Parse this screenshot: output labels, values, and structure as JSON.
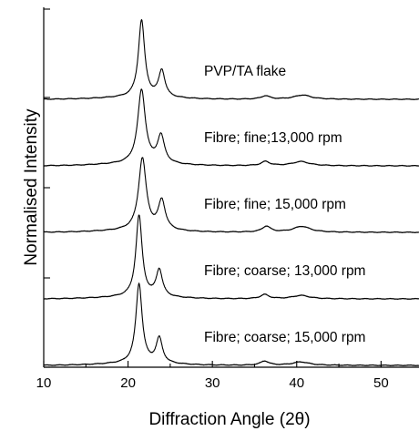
{
  "chart_data": {
    "type": "line",
    "xlabel": "Diffraction Angle (2θ)",
    "ylabel": "Normalised Intensity",
    "xlim": [
      10,
      54.5
    ],
    "x_ticks": [
      10,
      20,
      30,
      40,
      50
    ],
    "x_tick_labels": [
      "10",
      "20",
      "30",
      "40",
      "50"
    ],
    "grid": false,
    "legend": "inline labels above each trace",
    "stacked_offset": true,
    "series": [
      {
        "name": "PVP/TA flake",
        "baseline": 4,
        "peaks": [
          {
            "x": 21.6,
            "height": 0.92,
            "width": 0.45
          },
          {
            "x": 24.0,
            "height": 0.32,
            "width": 0.45
          },
          {
            "x": 36.3,
            "height": 0.04,
            "width": 0.6
          },
          {
            "x": 40.7,
            "height": 0.05,
            "width": 1.2
          }
        ]
      },
      {
        "name": "Fibre; fine;13,000 rpm",
        "baseline": 3,
        "peaks": [
          {
            "x": 21.6,
            "height": 0.88,
            "width": 0.55
          },
          {
            "x": 23.9,
            "height": 0.33,
            "width": 0.5
          },
          {
            "x": 36.3,
            "height": 0.05,
            "width": 0.6
          },
          {
            "x": 40.5,
            "height": 0.05,
            "width": 1.2
          }
        ]
      },
      {
        "name": "Fibre; fine; 15,000 rpm",
        "baseline": 2,
        "peaks": [
          {
            "x": 21.7,
            "height": 0.86,
            "width": 0.55
          },
          {
            "x": 24.0,
            "height": 0.35,
            "width": 0.5
          },
          {
            "x": 36.4,
            "height": 0.07,
            "width": 0.6
          },
          {
            "x": 40.6,
            "height": 0.07,
            "width": 1.2
          }
        ]
      },
      {
        "name": "Fibre; coarse; 13,000 rpm",
        "baseline": 1,
        "peaks": [
          {
            "x": 21.3,
            "height": 0.97,
            "width": 0.45
          },
          {
            "x": 23.7,
            "height": 0.32,
            "width": 0.45
          },
          {
            "x": 36.2,
            "height": 0.05,
            "width": 0.6
          },
          {
            "x": 40.5,
            "height": 0.04,
            "width": 1.2
          }
        ]
      },
      {
        "name": "Fibre; coarse; 15,000 rpm",
        "baseline": 0,
        "peaks": [
          {
            "x": 21.3,
            "height": 0.95,
            "width": 0.45
          },
          {
            "x": 23.7,
            "height": 0.3,
            "width": 0.45
          },
          {
            "x": 36.2,
            "height": 0.05,
            "width": 0.6
          },
          {
            "x": 40.5,
            "height": 0.04,
            "width": 1.2
          }
        ]
      }
    ]
  }
}
